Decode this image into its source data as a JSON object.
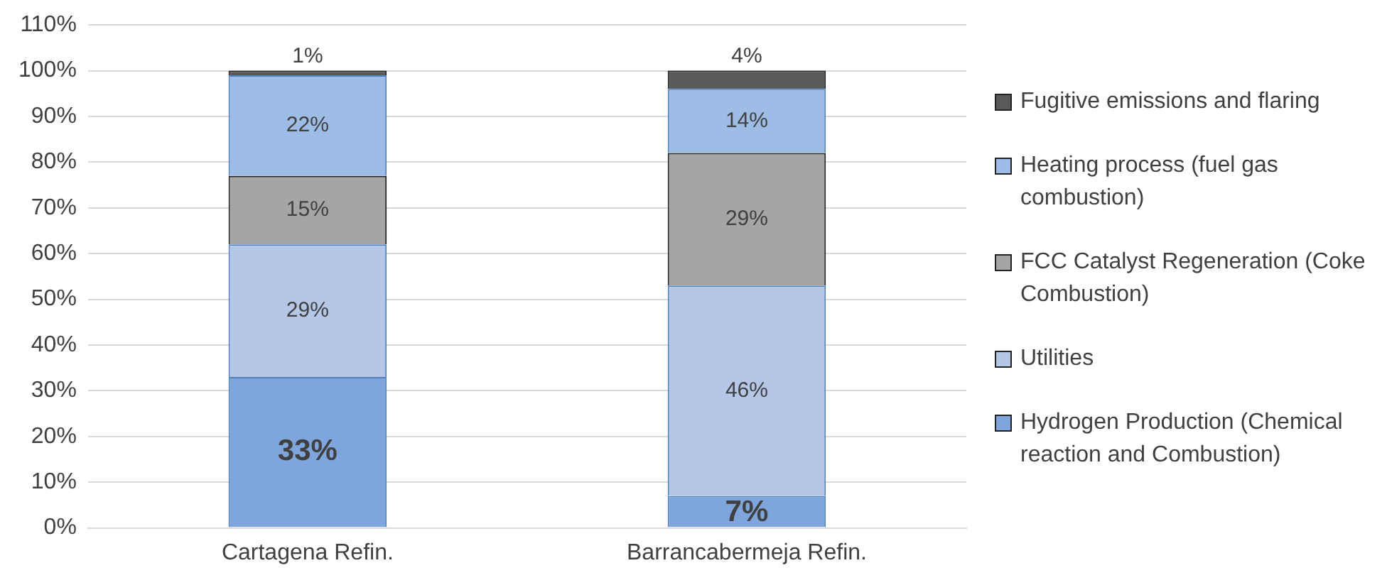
{
  "chart_data": {
    "type": "bar",
    "stacked": true,
    "categories": [
      "Cartagena Refin.",
      "Barrancabermeja Refin."
    ],
    "series": [
      {
        "name": "Hydrogen Production (Chemical reaction and Combustion)",
        "color": "#7ea6dc",
        "values": [
          33,
          7
        ],
        "value_labels": [
          "33%",
          "7%"
        ]
      },
      {
        "name": "Utilities",
        "color": "#b4c7e7",
        "values": [
          29,
          46
        ],
        "value_labels": [
          "29%",
          "46%"
        ]
      },
      {
        "name": "FCC Catalyst Regeneration (Coke Combustion)",
        "color": "#a5a5a5",
        "values": [
          15,
          29
        ],
        "value_labels": [
          "15%",
          "29%"
        ]
      },
      {
        "name": "Heating process (fuel gas combustion)",
        "color": "#9dbde6",
        "values": [
          22,
          14
        ],
        "value_labels": [
          "22%",
          "14%"
        ]
      },
      {
        "name": "Fugitive emissions and flaring",
        "color": "#595959",
        "values": [
          1,
          4
        ],
        "value_labels": [
          "1%",
          "4%"
        ]
      }
    ],
    "ylim": [
      0,
      110
    ],
    "yticks": [
      {
        "value": 0,
        "label": "0%"
      },
      {
        "value": 10,
        "label": "10%"
      },
      {
        "value": 20,
        "label": "20%"
      },
      {
        "value": 30,
        "label": "30%"
      },
      {
        "value": 40,
        "label": "40%"
      },
      {
        "value": 50,
        "label": "50%"
      },
      {
        "value": 60,
        "label": "60%"
      },
      {
        "value": 70,
        "label": "70%"
      },
      {
        "value": 80,
        "label": "80%"
      },
      {
        "value": 90,
        "label": "90%"
      },
      {
        "value": 100,
        "label": "100%"
      },
      {
        "value": 110,
        "label": "110%"
      }
    ],
    "grid": "y",
    "legend": "right"
  }
}
